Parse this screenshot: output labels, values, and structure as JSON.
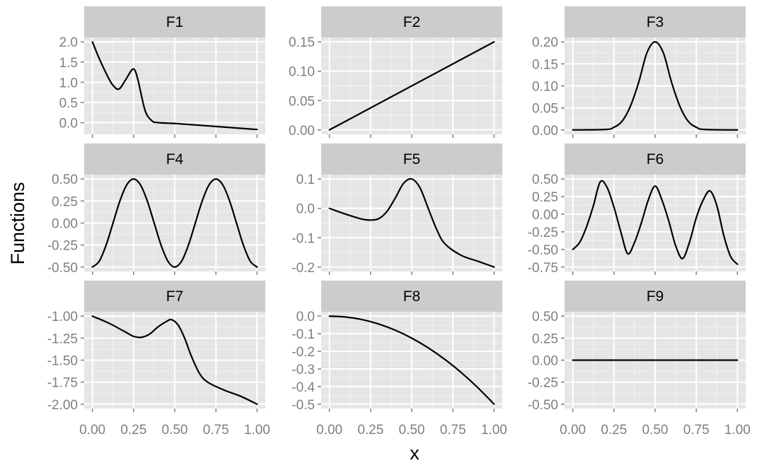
{
  "figure": {
    "xlabel": "x",
    "ylabel": "Functions",
    "colors": {
      "panel_background": "#e5e5e5",
      "strip_background": "#cccccc",
      "major_grid": "#ffffff",
      "minor_grid": "#f2f2f2",
      "line": "#000000",
      "tick_label": "#7f7f7f"
    }
  },
  "chart_data": [
    {
      "type": "line",
      "title": "F1",
      "xlim": [
        0,
        1
      ],
      "ylim": [
        -0.18,
        2.0
      ],
      "xticks": [
        0,
        0.25,
        0.5,
        0.75,
        1
      ],
      "xtick_labels": [
        "0.00",
        "0.25",
        "0.50",
        "0.75",
        "1.00"
      ],
      "yticks": [
        0,
        0.5,
        1.0,
        1.5,
        2.0
      ],
      "ytick_labels": [
        "0.0",
        "0.5",
        "1.0",
        "1.5",
        "2.0"
      ],
      "x": [
        0,
        0.04,
        0.08,
        0.12,
        0.16,
        0.2,
        0.24,
        0.26,
        0.28,
        0.32,
        0.36,
        0.4,
        0.5,
        0.6,
        0.7,
        0.8,
        0.9,
        1.0
      ],
      "y": [
        2.0,
        1.6,
        1.25,
        0.95,
        0.83,
        1.05,
        1.31,
        1.28,
        1.0,
        0.3,
        0.05,
        0.0,
        -0.02,
        -0.05,
        -0.08,
        -0.11,
        -0.14,
        -0.17
      ]
    },
    {
      "type": "line",
      "title": "F2",
      "xlim": [
        0,
        1
      ],
      "ylim": [
        0,
        0.15
      ],
      "xticks": [
        0,
        0.25,
        0.5,
        0.75,
        1
      ],
      "xtick_labels": [
        "0.00",
        "0.25",
        "0.50",
        "0.75",
        "1.00"
      ],
      "yticks": [
        0,
        0.05,
        0.1,
        0.15
      ],
      "ytick_labels": [
        "0.00",
        "0.05",
        "0.10",
        "0.15"
      ],
      "x": [
        0,
        1
      ],
      "y": [
        0,
        0.15
      ]
    },
    {
      "type": "line",
      "title": "F3",
      "xlim": [
        0,
        1
      ],
      "ylim": [
        0,
        0.2
      ],
      "xticks": [
        0,
        0.25,
        0.5,
        0.75,
        1
      ],
      "xtick_labels": [
        "0.00",
        "0.25",
        "0.50",
        "0.75",
        "1.00"
      ],
      "yticks": [
        0,
        0.05,
        0.1,
        0.15,
        0.2
      ],
      "ytick_labels": [
        "0.00",
        "0.05",
        "0.10",
        "0.15",
        "0.20"
      ],
      "x": [
        0,
        0.2,
        0.25,
        0.3,
        0.35,
        0.4,
        0.45,
        0.5,
        0.55,
        0.6,
        0.65,
        0.7,
        0.75,
        0.8,
        1.0
      ],
      "y": [
        0,
        0.001,
        0.006,
        0.02,
        0.054,
        0.108,
        0.175,
        0.2,
        0.175,
        0.108,
        0.054,
        0.02,
        0.006,
        0.001,
        0
      ]
    },
    {
      "type": "line",
      "title": "F4",
      "xlim": [
        0,
        1
      ],
      "ylim": [
        -0.5,
        0.5
      ],
      "xticks": [
        0,
        0.25,
        0.5,
        0.75,
        1
      ],
      "xtick_labels": [
        "0.00",
        "0.25",
        "0.50",
        "0.75",
        "1.00"
      ],
      "yticks": [
        -0.5,
        -0.25,
        0,
        0.25,
        0.5
      ],
      "ytick_labels": [
        "-0.50",
        "-0.25",
        "0.00",
        "0.25",
        "0.50"
      ],
      "x": [
        0,
        0.0417,
        0.0833,
        0.125,
        0.1667,
        0.2083,
        0.25,
        0.2917,
        0.3333,
        0.375,
        0.4167,
        0.4583,
        0.5,
        0.5417,
        0.5833,
        0.625,
        0.6667,
        0.7083,
        0.75,
        0.7917,
        0.8333,
        0.875,
        0.9167,
        0.9583,
        1.0
      ],
      "y": [
        -0.5,
        -0.433,
        -0.25,
        0.0,
        0.25,
        0.433,
        0.5,
        0.433,
        0.25,
        0.0,
        -0.25,
        -0.433,
        -0.5,
        -0.433,
        -0.25,
        0.0,
        0.25,
        0.433,
        0.5,
        0.433,
        0.25,
        0.0,
        -0.25,
        -0.433,
        -0.5
      ]
    },
    {
      "type": "line",
      "title": "F5",
      "xlim": [
        0,
        1
      ],
      "ylim": [
        -0.2,
        0.1
      ],
      "xticks": [
        0,
        0.25,
        0.5,
        0.75,
        1
      ],
      "xtick_labels": [
        "0.00",
        "0.25",
        "0.50",
        "0.75",
        "1.00"
      ],
      "yticks": [
        -0.2,
        -0.1,
        0,
        0.1
      ],
      "ytick_labels": [
        "-0.2",
        "-0.1",
        "0.0",
        "0.1"
      ],
      "x": [
        0,
        0.1,
        0.2,
        0.25,
        0.3,
        0.35,
        0.4,
        0.45,
        0.5,
        0.55,
        0.6,
        0.65,
        0.7,
        0.8,
        0.9,
        1.0
      ],
      "y": [
        0.0,
        -0.02,
        -0.037,
        -0.04,
        -0.035,
        -0.01,
        0.035,
        0.085,
        0.1,
        0.07,
        0.0,
        -0.07,
        -0.12,
        -0.16,
        -0.18,
        -0.2
      ]
    },
    {
      "type": "line",
      "title": "F6",
      "xlim": [
        0,
        1
      ],
      "ylim": [
        -0.75,
        0.5
      ],
      "xticks": [
        0,
        0.25,
        0.5,
        0.75,
        1
      ],
      "xtick_labels": [
        "0.00",
        "0.25",
        "0.50",
        "0.75",
        "1.00"
      ],
      "yticks": [
        -0.75,
        -0.5,
        -0.25,
        0,
        0.25,
        0.5
      ],
      "ytick_labels": [
        "-0.75",
        "-0.50",
        "-0.25",
        "0.00",
        "0.25",
        "0.50"
      ],
      "x": [
        0,
        0.0417,
        0.0833,
        0.125,
        0.1667,
        0.2083,
        0.25,
        0.2917,
        0.3333,
        0.375,
        0.4167,
        0.4583,
        0.5,
        0.5417,
        0.5833,
        0.625,
        0.6667,
        0.7083,
        0.75,
        0.7917,
        0.8333,
        0.875,
        0.9167,
        0.9583,
        1.0
      ],
      "y": [
        -0.5,
        -0.4,
        -0.18,
        0.12,
        0.46,
        0.38,
        0.1,
        -0.25,
        -0.56,
        -0.4,
        -0.12,
        0.2,
        0.4,
        0.2,
        -0.1,
        -0.45,
        -0.63,
        -0.4,
        -0.05,
        0.2,
        0.33,
        0.12,
        -0.3,
        -0.6,
        -0.71
      ]
    },
    {
      "type": "line",
      "title": "F7",
      "xlim": [
        0,
        1
      ],
      "ylim": [
        -2.0,
        -1.0
      ],
      "xticks": [
        0,
        0.25,
        0.5,
        0.75,
        1
      ],
      "xtick_labels": [
        "0.00",
        "0.25",
        "0.50",
        "0.75",
        "1.00"
      ],
      "yticks": [
        -2.0,
        -1.75,
        -1.5,
        -1.25,
        -1.0
      ],
      "ytick_labels": [
        "-2.00",
        "-1.75",
        "-1.50",
        "-1.25",
        "-1.00"
      ],
      "x": [
        0,
        0.1,
        0.2,
        0.25,
        0.3,
        0.35,
        0.4,
        0.45,
        0.48,
        0.52,
        0.56,
        0.6,
        0.65,
        0.7,
        0.8,
        0.9,
        1.0
      ],
      "y": [
        -1.0,
        -1.08,
        -1.18,
        -1.23,
        -1.24,
        -1.2,
        -1.12,
        -1.06,
        -1.04,
        -1.1,
        -1.25,
        -1.45,
        -1.65,
        -1.75,
        -1.84,
        -1.91,
        -2.0
      ]
    },
    {
      "type": "line",
      "title": "F8",
      "xlim": [
        0,
        1
      ],
      "ylim": [
        -0.5,
        0.0
      ],
      "xticks": [
        0,
        0.25,
        0.5,
        0.75,
        1
      ],
      "xtick_labels": [
        "0.00",
        "0.25",
        "0.50",
        "0.75",
        "1.00"
      ],
      "yticks": [
        -0.5,
        -0.4,
        -0.3,
        -0.2,
        -0.1,
        0
      ],
      "ytick_labels": [
        "-0.5",
        "-0.4",
        "-0.3",
        "-0.2",
        "-0.1",
        "0.0"
      ],
      "x": [
        0,
        0.1,
        0.2,
        0.3,
        0.4,
        0.5,
        0.6,
        0.7,
        0.8,
        0.9,
        1.0
      ],
      "y": [
        0,
        -0.005,
        -0.02,
        -0.045,
        -0.08,
        -0.125,
        -0.18,
        -0.245,
        -0.32,
        -0.405,
        -0.5
      ]
    },
    {
      "type": "line",
      "title": "F9",
      "xlim": [
        0,
        1
      ],
      "ylim": [
        -0.5,
        0.5
      ],
      "xticks": [
        0,
        0.25,
        0.5,
        0.75,
        1
      ],
      "xtick_labels": [
        "0.00",
        "0.25",
        "0.50",
        "0.75",
        "1.00"
      ],
      "yticks": [
        -0.5,
        -0.25,
        0,
        0.25,
        0.5
      ],
      "ytick_labels": [
        "-0.50",
        "-0.25",
        "0.00",
        "0.25",
        "0.50"
      ],
      "x": [
        0,
        1
      ],
      "y": [
        0,
        0
      ]
    }
  ]
}
